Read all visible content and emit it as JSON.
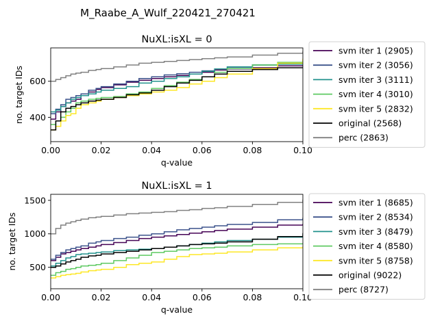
{
  "suptitle": "M_Raabe_A_Wulf_220421_270421",
  "chart_data": [
    {
      "type": "line",
      "step": true,
      "title": "NuXL:isXL = 0",
      "xlabel": "q-value",
      "ylabel": "no. target IDs",
      "xlim": [
        0,
        0.1
      ],
      "ylim": [
        265,
        785
      ],
      "xticks": [
        0,
        0.02,
        0.04,
        0.06,
        0.08,
        0.1
      ],
      "xtick_labels": [
        "0.00",
        "0.02",
        "0.04",
        "0.06",
        "0.08",
        "0.10"
      ],
      "yticks": [
        400,
        600
      ],
      "ytick_labels": [
        "400",
        "600"
      ],
      "grid": false,
      "legend_position": "outside-right",
      "series": [
        {
          "name": "svm iter 1 (2905)",
          "color": "#440154",
          "x": [
            0,
            0.002,
            0.004,
            0.006,
            0.008,
            0.01,
            0.012,
            0.015,
            0.018,
            0.02,
            0.025,
            0.03,
            0.035,
            0.04,
            0.045,
            0.05,
            0.055,
            0.06,
            0.065,
            0.07,
            0.08,
            0.09,
            0.1
          ],
          "y": [
            390,
            430,
            460,
            480,
            490,
            500,
            520,
            540,
            555,
            565,
            580,
            595,
            605,
            615,
            625,
            632,
            640,
            650,
            662,
            668,
            675,
            685,
            690
          ]
        },
        {
          "name": "svm iter 2 (3056)",
          "color": "#3b528b",
          "x": [
            0,
            0.002,
            0.004,
            0.006,
            0.008,
            0.01,
            0.012,
            0.015,
            0.018,
            0.02,
            0.025,
            0.03,
            0.035,
            0.04,
            0.045,
            0.05,
            0.055,
            0.06,
            0.065,
            0.07,
            0.08,
            0.09,
            0.1
          ],
          "y": [
            420,
            445,
            470,
            500,
            510,
            520,
            530,
            550,
            560,
            570,
            585,
            600,
            615,
            625,
            635,
            642,
            650,
            658,
            668,
            678,
            690,
            700,
            705
          ]
        },
        {
          "name": "svm iter 3 (3111)",
          "color": "#21918c",
          "x": [
            0,
            0.002,
            0.004,
            0.006,
            0.008,
            0.01,
            0.012,
            0.015,
            0.018,
            0.02,
            0.025,
            0.03,
            0.035,
            0.04,
            0.045,
            0.05,
            0.055,
            0.06,
            0.065,
            0.07,
            0.08,
            0.09,
            0.1
          ],
          "y": [
            430,
            440,
            460,
            480,
            500,
            510,
            520,
            530,
            540,
            550,
            560,
            570,
            590,
            600,
            615,
            625,
            640,
            655,
            668,
            680,
            690,
            695,
            700
          ]
        },
        {
          "name": "svm iter 4 (3010)",
          "color": "#5ec962",
          "x": [
            0,
            0.002,
            0.004,
            0.006,
            0.008,
            0.01,
            0.012,
            0.015,
            0.018,
            0.02,
            0.025,
            0.03,
            0.035,
            0.04,
            0.045,
            0.05,
            0.055,
            0.06,
            0.065,
            0.07,
            0.08,
            0.09,
            0.1
          ],
          "y": [
            360,
            380,
            400,
            430,
            450,
            480,
            490,
            500,
            505,
            510,
            515,
            530,
            540,
            560,
            575,
            595,
            610,
            625,
            650,
            670,
            690,
            705,
            715
          ]
        },
        {
          "name": "svm iter 5 (2832)",
          "color": "#fde725",
          "x": [
            0,
            0.002,
            0.004,
            0.006,
            0.008,
            0.01,
            0.012,
            0.015,
            0.018,
            0.02,
            0.025,
            0.03,
            0.035,
            0.04,
            0.045,
            0.05,
            0.055,
            0.06,
            0.065,
            0.07,
            0.08,
            0.09,
            0.1
          ],
          "y": [
            330,
            350,
            380,
            410,
            420,
            450,
            470,
            480,
            490,
            500,
            510,
            520,
            530,
            540,
            550,
            565,
            585,
            600,
            620,
            640,
            670,
            700,
            725
          ]
        },
        {
          "name": "original (2568)",
          "color": "#000000",
          "x": [
            0,
            0.002,
            0.004,
            0.006,
            0.008,
            0.01,
            0.012,
            0.015,
            0.018,
            0.02,
            0.025,
            0.03,
            0.035,
            0.04,
            0.045,
            0.05,
            0.055,
            0.06,
            0.065,
            0.07,
            0.08,
            0.09,
            0.1
          ],
          "y": [
            330,
            380,
            430,
            450,
            460,
            470,
            480,
            490,
            495,
            500,
            510,
            525,
            535,
            550,
            570,
            590,
            605,
            625,
            640,
            655,
            665,
            675,
            680
          ]
        },
        {
          "name": "perc (2863)",
          "color": "#808080",
          "x": [
            0,
            0.002,
            0.004,
            0.006,
            0.008,
            0.01,
            0.012,
            0.015,
            0.018,
            0.02,
            0.025,
            0.03,
            0.035,
            0.04,
            0.045,
            0.05,
            0.055,
            0.06,
            0.065,
            0.07,
            0.08,
            0.09,
            0.1
          ],
          "y": [
            600,
            610,
            620,
            630,
            640,
            645,
            650,
            660,
            665,
            670,
            680,
            690,
            700,
            705,
            710,
            715,
            720,
            725,
            730,
            735,
            745,
            755,
            765
          ]
        }
      ]
    },
    {
      "type": "line",
      "step": true,
      "title": "NuXL:isXL = 1",
      "xlabel": "q-value",
      "ylabel": "no. target IDs",
      "xlim": [
        0,
        0.1
      ],
      "ylim": [
        180,
        1590
      ],
      "xticks": [
        0,
        0.02,
        0.04,
        0.06,
        0.08,
        0.1
      ],
      "xtick_labels": [
        "0.00",
        "0.02",
        "0.04",
        "0.06",
        "0.08",
        "0.10"
      ],
      "yticks": [
        500,
        1000,
        1500
      ],
      "ytick_labels": [
        "500",
        "1000",
        "1500"
      ],
      "grid": false,
      "legend_position": "outside-right",
      "series": [
        {
          "name": "svm iter 1 (8685)",
          "color": "#440154",
          "x": [
            0,
            0.002,
            0.004,
            0.006,
            0.008,
            0.01,
            0.012,
            0.015,
            0.018,
            0.02,
            0.025,
            0.03,
            0.035,
            0.04,
            0.045,
            0.05,
            0.055,
            0.06,
            0.065,
            0.07,
            0.08,
            0.09,
            0.1
          ],
          "y": [
            600,
            650,
            700,
            720,
            740,
            760,
            780,
            800,
            820,
            840,
            870,
            900,
            930,
            950,
            970,
            990,
            1010,
            1030,
            1050,
            1070,
            1100,
            1130,
            1150
          ]
        },
        {
          "name": "svm iter 2 (8534)",
          "color": "#3b528b",
          "x": [
            0,
            0.002,
            0.004,
            0.006,
            0.008,
            0.01,
            0.012,
            0.015,
            0.018,
            0.02,
            0.025,
            0.03,
            0.035,
            0.04,
            0.045,
            0.05,
            0.055,
            0.06,
            0.065,
            0.07,
            0.08,
            0.09,
            0.1
          ],
          "y": [
            620,
            680,
            720,
            760,
            780,
            800,
            820,
            860,
            880,
            900,
            930,
            950,
            980,
            1000,
            1030,
            1060,
            1080,
            1100,
            1120,
            1140,
            1170,
            1210,
            1240
          ]
        },
        {
          "name": "svm iter 3 (8479)",
          "color": "#21918c",
          "x": [
            0,
            0.002,
            0.004,
            0.006,
            0.008,
            0.01,
            0.012,
            0.015,
            0.018,
            0.02,
            0.025,
            0.03,
            0.035,
            0.04,
            0.045,
            0.05,
            0.055,
            0.06,
            0.065,
            0.07,
            0.08,
            0.09,
            0.1
          ],
          "y": [
            520,
            560,
            600,
            640,
            660,
            690,
            700,
            710,
            720,
            730,
            750,
            760,
            770,
            780,
            800,
            820,
            840,
            860,
            880,
            900,
            920,
            950,
            980
          ]
        },
        {
          "name": "svm iter 4 (8580)",
          "color": "#5ec962",
          "x": [
            0,
            0.002,
            0.004,
            0.006,
            0.008,
            0.01,
            0.012,
            0.015,
            0.018,
            0.02,
            0.025,
            0.03,
            0.035,
            0.04,
            0.045,
            0.05,
            0.055,
            0.06,
            0.065,
            0.07,
            0.08,
            0.09,
            0.1
          ],
          "y": [
            380,
            420,
            440,
            470,
            480,
            500,
            520,
            530,
            540,
            560,
            600,
            640,
            680,
            720,
            740,
            760,
            780,
            790,
            800,
            820,
            840,
            850,
            860
          ]
        },
        {
          "name": "svm iter 5 (8758)",
          "color": "#fde725",
          "x": [
            0,
            0.002,
            0.004,
            0.006,
            0.008,
            0.01,
            0.012,
            0.015,
            0.018,
            0.02,
            0.025,
            0.03,
            0.035,
            0.04,
            0.045,
            0.05,
            0.055,
            0.06,
            0.065,
            0.07,
            0.08,
            0.09,
            0.1
          ],
          "y": [
            340,
            360,
            380,
            390,
            400,
            410,
            430,
            450,
            460,
            470,
            500,
            540,
            560,
            580,
            620,
            660,
            690,
            700,
            710,
            730,
            760,
            790,
            810
          ]
        },
        {
          "name": "original (9022)",
          "color": "#000000",
          "x": [
            0,
            0.002,
            0.004,
            0.006,
            0.008,
            0.01,
            0.012,
            0.015,
            0.018,
            0.02,
            0.025,
            0.03,
            0.035,
            0.04,
            0.045,
            0.05,
            0.055,
            0.06,
            0.065,
            0.07,
            0.08,
            0.09,
            0.1
          ],
          "y": [
            500,
            520,
            550,
            580,
            600,
            620,
            650,
            670,
            680,
            700,
            720,
            740,
            760,
            780,
            800,
            820,
            840,
            850,
            860,
            880,
            920,
            960,
            1010
          ]
        },
        {
          "name": "perc (8727)",
          "color": "#808080",
          "x": [
            0,
            0.002,
            0.004,
            0.006,
            0.008,
            0.01,
            0.012,
            0.015,
            0.018,
            0.02,
            0.025,
            0.03,
            0.035,
            0.04,
            0.045,
            0.05,
            0.055,
            0.06,
            0.065,
            0.07,
            0.08,
            0.09,
            0.1
          ],
          "y": [
            1000,
            1080,
            1130,
            1160,
            1180,
            1200,
            1220,
            1240,
            1250,
            1260,
            1280,
            1300,
            1310,
            1320,
            1330,
            1350,
            1360,
            1380,
            1390,
            1410,
            1440,
            1470,
            1510
          ]
        }
      ]
    }
  ]
}
